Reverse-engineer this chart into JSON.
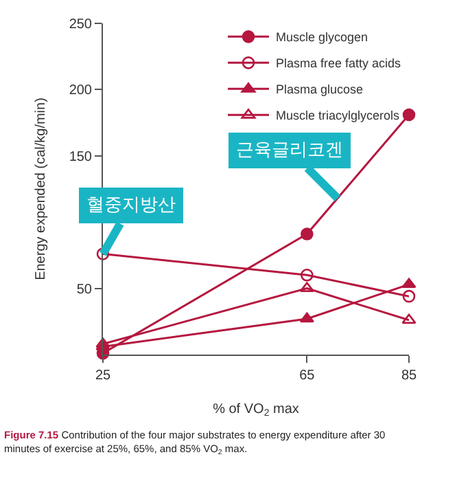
{
  "chart_data": {
    "type": "line",
    "xlabel": "% of VO$_{2}$ max",
    "ylabel": "Energy expended (cal/kg/min)",
    "x": [
      25,
      65,
      85
    ],
    "xlim": [
      25,
      85
    ],
    "xticks": [
      25,
      65,
      85
    ],
    "ylim": [
      0,
      250
    ],
    "yticks": [
      50,
      150,
      200,
      250
    ],
    "legend": "top right",
    "line_style": "solid",
    "series": [
      {
        "name": "Muscle glycogen",
        "color": "#b5173f",
        "marker": "circle",
        "values": [
          1,
          91,
          181
        ]
      },
      {
        "name": "Plasma free fatty acids",
        "color": "#b5173f",
        "marker": "circle-open",
        "values": [
          76,
          60,
          44
        ]
      },
      {
        "name": "Plasma glucose",
        "color": "#b5173f",
        "marker": "triangle",
        "values": [
          6,
          27,
          53
        ]
      },
      {
        "name": "Muscle triacylglycerols",
        "color": "#b5173f",
        "marker": "triangle-open",
        "values": [
          8,
          50,
          26
        ]
      }
    ],
    "annotations": [
      {
        "text": "근육글리코겐",
        "x": 71,
        "y": 118
      },
      {
        "text": "혈중지방산",
        "x": 25,
        "y": 76
      },
      "Figure 7.15",
      "Contribution of the four major substrates to energy expenditure after 30 minutes of exercise at 25%, 65%, and 85% VO$_{2}$ max."
    ]
  }
}
